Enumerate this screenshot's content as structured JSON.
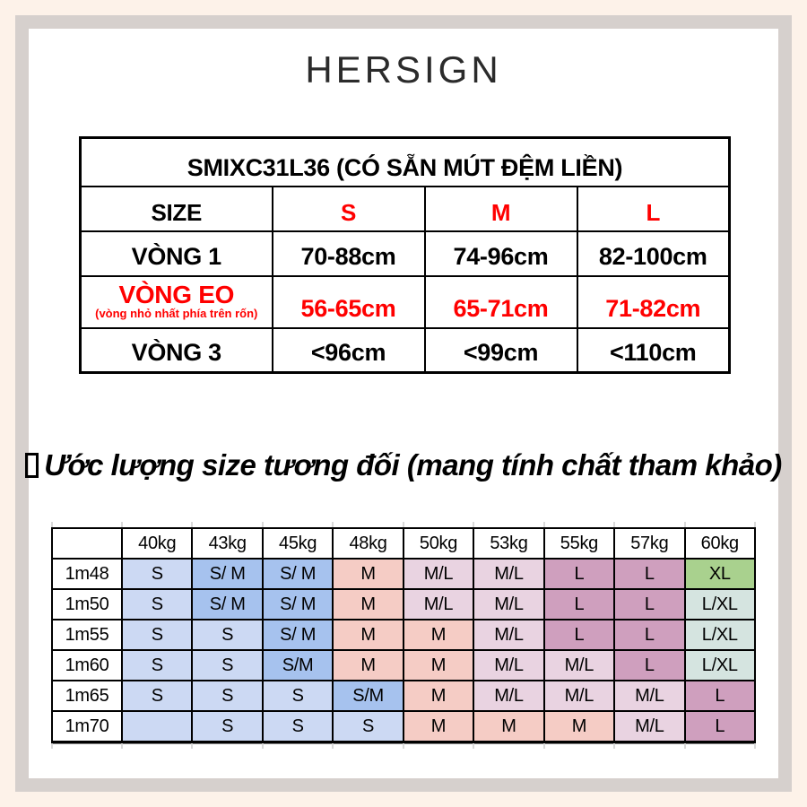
{
  "brand": {
    "logo": "HERSIGN"
  },
  "colors": {
    "page_bg": "#fdf2e9",
    "frame": "#d6d0cd",
    "accent_red": "#ff0000"
  },
  "size_table": {
    "title": "SMIXC31L36 (CÓ SẴN MÚT ĐỆM LIỀN)",
    "header": {
      "label": "SIZE",
      "sizes": [
        "S",
        "M",
        "L"
      ]
    },
    "rows": [
      {
        "label": "VÒNG 1",
        "sublabel": "",
        "values": [
          "70-88cm",
          "74-96cm",
          "82-100cm"
        ],
        "red": false,
        "tall": false
      },
      {
        "label": "VÒNG EO",
        "sublabel": "(vòng nhỏ nhất phía trên rốn)",
        "values": [
          "56-65cm",
          "65-71cm",
          "71-82cm"
        ],
        "red": true,
        "tall": true
      },
      {
        "label": "VÒNG 3",
        "sublabel": "",
        "values": [
          "<96cm",
          "<99cm",
          "<110cm"
        ],
        "red": false,
        "tall": false
      }
    ]
  },
  "estimate_heading": "Ước lượng size tương đối (mang tính chất tham khảo)",
  "palette": {
    "blue_light": "#ccd9f3",
    "blue": "#a6c2ee",
    "salmon": "#f5ccc5",
    "lilac": "#e9d3e1",
    "mauve": "#cf9fbe",
    "green": "#a9d18e",
    "mint": "#d5e4e0",
    "white": "#ffffff"
  },
  "estimate_table": {
    "weight_headers": [
      "40kg",
      "43kg",
      "45kg",
      "48kg",
      "50kg",
      "53kg",
      "55kg",
      "57kg",
      "60kg"
    ],
    "height_rows": [
      {
        "height": "1m48",
        "cells": [
          {
            "t": "S",
            "c": "blue_light"
          },
          {
            "t": "S/ M",
            "c": "blue"
          },
          {
            "t": "S/ M",
            "c": "blue"
          },
          {
            "t": "M",
            "c": "salmon"
          },
          {
            "t": "M/L",
            "c": "lilac"
          },
          {
            "t": "M/L",
            "c": "lilac"
          },
          {
            "t": "L",
            "c": "mauve"
          },
          {
            "t": "L",
            "c": "mauve"
          },
          {
            "t": "XL",
            "c": "green"
          }
        ]
      },
      {
        "height": "1m50",
        "cells": [
          {
            "t": "S",
            "c": "blue_light"
          },
          {
            "t": "S/ M",
            "c": "blue"
          },
          {
            "t": "S/ M",
            "c": "blue"
          },
          {
            "t": "M",
            "c": "salmon"
          },
          {
            "t": "M/L",
            "c": "lilac"
          },
          {
            "t": "M/L",
            "c": "lilac"
          },
          {
            "t": "L",
            "c": "mauve"
          },
          {
            "t": "L",
            "c": "mauve"
          },
          {
            "t": "L/XL",
            "c": "mint"
          }
        ]
      },
      {
        "height": "1m55",
        "cells": [
          {
            "t": "S",
            "c": "blue_light"
          },
          {
            "t": "S",
            "c": "blue_light"
          },
          {
            "t": "S/ M",
            "c": "blue"
          },
          {
            "t": "M",
            "c": "salmon"
          },
          {
            "t": "M",
            "c": "salmon"
          },
          {
            "t": "M/L",
            "c": "lilac"
          },
          {
            "t": "L",
            "c": "mauve"
          },
          {
            "t": "L",
            "c": "mauve"
          },
          {
            "t": "L/XL",
            "c": "mint"
          }
        ]
      },
      {
        "height": "1m60",
        "cells": [
          {
            "t": "S",
            "c": "blue_light"
          },
          {
            "t": "S",
            "c": "blue_light"
          },
          {
            "t": "S/M",
            "c": "blue"
          },
          {
            "t": "M",
            "c": "salmon"
          },
          {
            "t": "M",
            "c": "salmon"
          },
          {
            "t": "M/L",
            "c": "lilac"
          },
          {
            "t": "M/L",
            "c": "lilac"
          },
          {
            "t": "L",
            "c": "mauve"
          },
          {
            "t": "L/XL",
            "c": "mint"
          }
        ]
      },
      {
        "height": "1m65",
        "cells": [
          {
            "t": "S",
            "c": "blue_light"
          },
          {
            "t": "S",
            "c": "blue_light"
          },
          {
            "t": "S",
            "c": "blue_light"
          },
          {
            "t": "S/M",
            "c": "blue"
          },
          {
            "t": "M",
            "c": "salmon"
          },
          {
            "t": "M/L",
            "c": "lilac"
          },
          {
            "t": "M/L",
            "c": "lilac"
          },
          {
            "t": "M/L",
            "c": "lilac"
          },
          {
            "t": "L",
            "c": "mauve"
          }
        ]
      },
      {
        "height": "1m70",
        "cells": [
          {
            "t": "",
            "c": "blue_light"
          },
          {
            "t": "S",
            "c": "blue_light"
          },
          {
            "t": "S",
            "c": "blue_light"
          },
          {
            "t": "S",
            "c": "blue_light"
          },
          {
            "t": "M",
            "c": "salmon"
          },
          {
            "t": "M",
            "c": "salmon"
          },
          {
            "t": "M",
            "c": "salmon"
          },
          {
            "t": "M/L",
            "c": "lilac"
          },
          {
            "t": "L",
            "c": "mauve"
          }
        ]
      }
    ]
  }
}
